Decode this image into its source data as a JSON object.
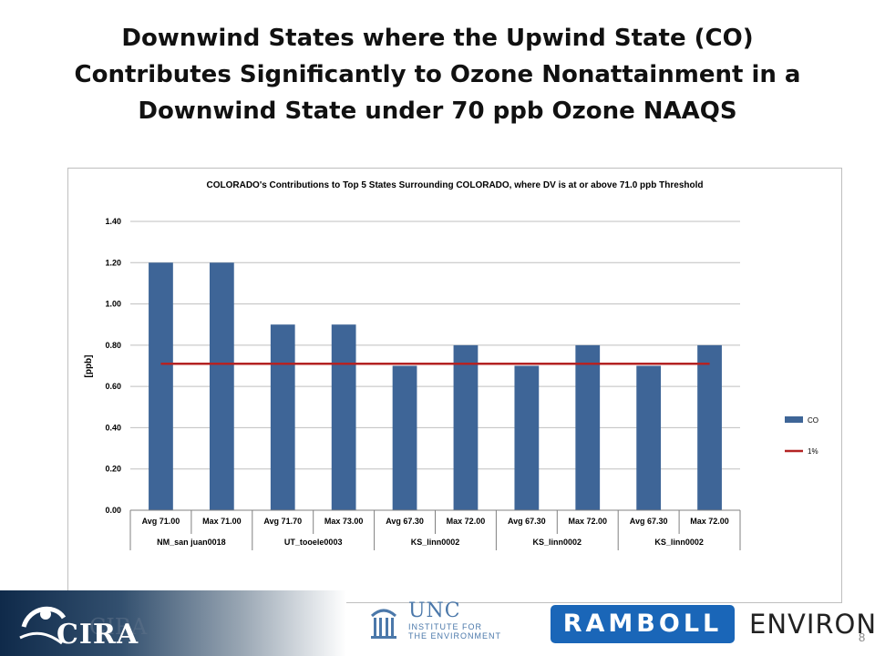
{
  "slide": {
    "title_lines": [
      "Downwind States where the Upwind State (CO)",
      "Contributes Significantly to Ozone Nonattainment in a",
      "Downwind State under 70 ppb Ozone NAAQS"
    ],
    "page_number": "8"
  },
  "logos": {
    "cira": "CIRA",
    "unc_title": "UNC",
    "unc_sub_line1": "INSTITUTE FOR",
    "unc_sub_line2": "THE ENVIRONMENT",
    "ramboll": "RAMBOLL",
    "environ": "ENVIRON"
  },
  "colors": {
    "bar": "#3e6597",
    "threshold_line": "#b42323",
    "grid": "#bfbfbf"
  },
  "chart_data": {
    "type": "bar",
    "title": "COLORADO's Contributions to Top 5 States Surrounding COLORADO, where DV is at or above 71.0 ppb Threshold",
    "ylabel": "[ppb]",
    "ylim": [
      0,
      1.4
    ],
    "yticks": [
      "0.00",
      "0.20",
      "0.40",
      "0.60",
      "0.80",
      "1.00",
      "1.20",
      "1.40"
    ],
    "categories": [
      "Avg 71.00",
      "Max 71.00",
      "Avg 71.70",
      "Max 73.00",
      "Avg 67.30",
      "Max 72.00",
      "Avg 67.30",
      "Max 72.00",
      "Avg 67.30",
      "Max 72.00"
    ],
    "groups": [
      {
        "label": "NM_san juan0018",
        "span": 2
      },
      {
        "label": "UT_tooele0003",
        "span": 2
      },
      {
        "label": "KS_linn0002",
        "span": 2
      },
      {
        "label": "KS_linn0002",
        "span": 2
      },
      {
        "label": "KS_linn0002",
        "span": 2
      }
    ],
    "series": [
      {
        "name": "CO",
        "type": "bar",
        "values": [
          1.2,
          1.2,
          0.9,
          0.9,
          0.7,
          0.8,
          0.7,
          0.8,
          0.7,
          0.8
        ]
      },
      {
        "name": "1%",
        "type": "line",
        "values": [
          0.71,
          0.71,
          0.71,
          0.71,
          0.71,
          0.71,
          0.71,
          0.71,
          0.71,
          0.71
        ]
      }
    ],
    "legend_position": "right",
    "grid": true
  }
}
